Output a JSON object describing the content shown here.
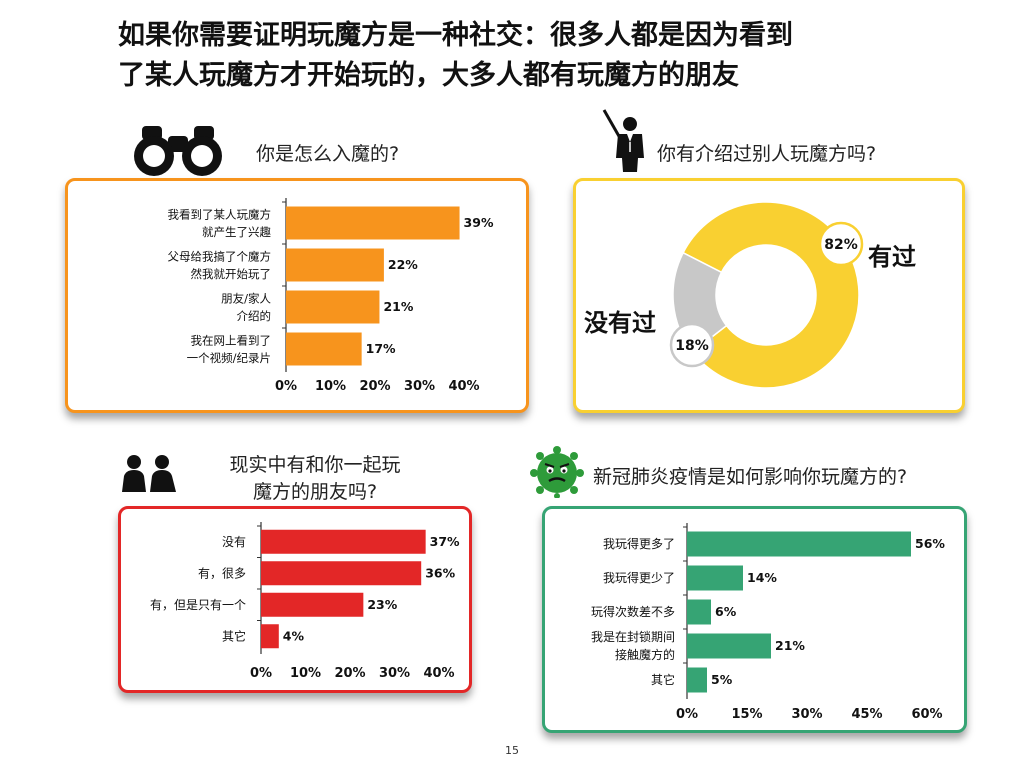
{
  "title": {
    "line1": "如果你需要证明玩魔方是一种社交：很多人都是因为看到",
    "line2": "了某人玩魔方才开始玩的，大多人都有玩魔方的朋友"
  },
  "colors": {
    "orange": "#F7941D",
    "yellow": "#F9D031",
    "gray": "#C8C8C8",
    "red": "#E32727",
    "green": "#36A474"
  },
  "icons": {
    "q1": "binoculars-icon",
    "q2": "teacher-pointer-icon",
    "q3": "two-people-icon",
    "q4": "virus-icon"
  },
  "questions": {
    "q1": "你是怎么入魔的?",
    "q2": "你有介绍过别人玩魔方吗?",
    "q3_line1": "现实中有和你一起玩",
    "q3_line2": "魔方的朋友吗?",
    "q4": "新冠肺炎疫情是如何影响你玩魔方的?"
  },
  "page_number": "15",
  "chart_data": [
    {
      "id": "q1",
      "type": "bar",
      "orientation": "horizontal",
      "categories": [
        [
          "我看到了某人玩魔方",
          "就产生了兴趣"
        ],
        [
          "父母给我搞了个魔方",
          "然我就开始玩了"
        ],
        [
          "朋友/家人",
          "介绍的"
        ],
        [
          "我在网上看到了",
          "一个视频/纪录片"
        ]
      ],
      "values": [
        39,
        22,
        21,
        17
      ],
      "value_labels": [
        "39%",
        "22%",
        "21%",
        "17%"
      ],
      "xlim": [
        0,
        40
      ],
      "ticks": [
        "0%",
        "10%",
        "20%",
        "30%",
        "40%"
      ],
      "color": "#F7941D"
    },
    {
      "id": "q2",
      "type": "pie",
      "donut": true,
      "slices": [
        {
          "label": "有过",
          "value": 82,
          "value_label": "82%",
          "color": "#F9D031"
        },
        {
          "label": "没有过",
          "value": 18,
          "value_label": "18%",
          "color": "#C8C8C8"
        }
      ]
    },
    {
      "id": "q3",
      "type": "bar",
      "orientation": "horizontal",
      "categories": [
        [
          "没有"
        ],
        [
          "有，很多"
        ],
        [
          "有，但是只有一个"
        ],
        [
          "其它"
        ]
      ],
      "values": [
        37,
        36,
        23,
        4
      ],
      "value_labels": [
        "37%",
        "36%",
        "23%",
        "4%"
      ],
      "xlim": [
        0,
        40
      ],
      "ticks": [
        "0%",
        "10%",
        "20%",
        "30%",
        "40%"
      ],
      "color": "#E32727"
    },
    {
      "id": "q4",
      "type": "bar",
      "orientation": "horizontal",
      "categories": [
        [
          "我玩得更多了"
        ],
        [
          "我玩得更少了"
        ],
        [
          "玩得次数差不多"
        ],
        [
          "我是在封锁期间",
          "接触魔方的"
        ],
        [
          "其它"
        ]
      ],
      "values": [
        56,
        14,
        6,
        21,
        5
      ],
      "value_labels": [
        "56%",
        "14%",
        "6%",
        "21%",
        "5%"
      ],
      "xlim": [
        0,
        60
      ],
      "ticks": [
        "0%",
        "15%",
        "30%",
        "45%",
        "60%"
      ],
      "color": "#36A474"
    }
  ]
}
